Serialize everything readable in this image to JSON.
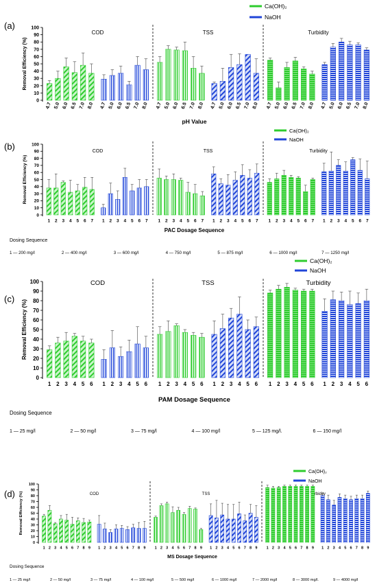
{
  "legend": {
    "series_a": "Ca(OH)₂",
    "series_b": "NaOH"
  },
  "colors": {
    "green": "#2ecc2e",
    "blue": "#2045d8",
    "axis": "#000000"
  },
  "chart_data": [
    {
      "panel_label": "(a)",
      "type": "bar",
      "ylabel": "Removal Efficiency (%)",
      "xlabel": "pH Value",
      "ylim": [
        0,
        100
      ],
      "yticks": [
        0,
        10,
        20,
        30,
        40,
        50,
        60,
        70,
        80,
        90,
        100
      ],
      "categories": [
        "4.7",
        "5.0",
        "6.0",
        "6.5",
        "7.0",
        "8.0"
      ],
      "sections": [
        {
          "name": "COD",
          "series": [
            {
              "name": "Ca(OH)₂",
              "values": [
                23,
                30,
                46,
                38,
                48,
                37
              ],
              "errors": [
                4,
                10,
                12,
                15,
                17,
                13
              ]
            },
            {
              "name": "NaOH",
              "values": [
                29,
                34,
                37,
                21,
                48,
                42
              ],
              "errors": [
                6,
                8,
                10,
                5,
                12,
                15
              ]
            }
          ]
        },
        {
          "name": "TSS",
          "series": [
            {
              "name": "Ca(OH)₂",
              "values": [
                52,
                70,
                69,
                68,
                44,
                37
              ],
              "errors": [
                8,
                5,
                4,
                12,
                16,
                10
              ]
            },
            {
              "name": "NaOH",
              "values": [
                23,
                26,
                45,
                49,
                63,
                37
              ],
              "errors": [
                2,
                18,
                18,
                15,
                0,
                20
              ]
            }
          ]
        },
        {
          "name": "Turbidity",
          "series": [
            {
              "name": "Ca(OH)₂",
              "values": [
                55,
                17,
                45,
                54,
                43,
                36
              ],
              "errors": [
                3,
                8,
                7,
                5,
                3,
                4
              ]
            },
            {
              "name": "NaOH",
              "values": [
                49,
                73,
                80,
                76,
                76,
                69
              ],
              "errors": [
                3,
                5,
                5,
                5,
                3,
                3
              ]
            }
          ]
        }
      ],
      "dosing": null
    },
    {
      "panel_label": "(b)",
      "type": "bar",
      "ylabel": "Removal Efficiency (%)",
      "xlabel": "PAC Dosage Sequence",
      "ylim": [
        0,
        100
      ],
      "yticks": [
        0,
        10,
        20,
        30,
        40,
        50,
        60,
        70,
        80,
        90,
        100
      ],
      "categories": [
        "1",
        "2",
        "3",
        "4",
        "5",
        "6",
        "7"
      ],
      "sections": [
        {
          "name": "COD",
          "series": [
            {
              "name": "Ca(OH)₂",
              "values": [
                38,
                38,
                46,
                32,
                34,
                39,
                36
              ],
              "errors": [
                12,
                20,
                2,
                17,
                9,
                14,
                17
              ]
            },
            {
              "name": "NaOH",
              "values": [
                10,
                30,
                22,
                53,
                34,
                38,
                40
              ],
              "errors": [
                5,
                15,
                12,
                13,
                9,
                12,
                10
              ]
            }
          ]
        },
        {
          "name": "TSS",
          "series": [
            {
              "name": "Ca(OH)₂",
              "values": [
                52,
                50,
                50,
                49,
                32,
                30,
                27
              ],
              "errors": [
                13,
                5,
                8,
                3,
                14,
                13,
                6
              ]
            },
            {
              "name": "NaOH",
              "values": [
                58,
                44,
                42,
                49,
                56,
                52,
                59
              ],
              "errors": [
                10,
                7,
                15,
                12,
                15,
                12,
                13
              ]
            }
          ]
        },
        {
          "name": "Turbidity",
          "series": [
            {
              "name": "Ca(OH)₂",
              "values": [
                46,
                51,
                56,
                53,
                52,
                33,
                50
              ],
              "errors": [
                5,
                8,
                7,
                3,
                2,
                9,
                2
              ]
            },
            {
              "name": "NaOH",
              "values": [
                61,
                62,
                70,
                62,
                78,
                63,
                51
              ],
              "errors": [
                12,
                27,
                8,
                13,
                3,
                16,
                25
              ]
            }
          ]
        }
      ],
      "dosing": {
        "title": "Dosing Sequence",
        "items": [
          "1 — 200 mg/l",
          "2 — 400 mg/l",
          "3 — 600 mg/l",
          "4 — 750 mg/l",
          "5 — 875 mg/l",
          "6 — 1000 mg/l",
          "7 — 1250 mg/l"
        ]
      }
    },
    {
      "panel_label": "(c)",
      "type": "bar",
      "ylabel": "Removal Efficiency (%)",
      "xlabel": "PAM Dosage Sequence",
      "ylim": [
        0,
        100
      ],
      "yticks": [
        0,
        10,
        20,
        30,
        40,
        50,
        60,
        70,
        80,
        90,
        100
      ],
      "categories": [
        "1",
        "2",
        "3",
        "4",
        "5",
        "6"
      ],
      "sections": [
        {
          "name": "COD",
          "series": [
            {
              "name": "Ca(OH)₂",
              "values": [
                29,
                36,
                38,
                43,
                38,
                36
              ],
              "errors": [
                4,
                6,
                9,
                3,
                5,
                4
              ]
            },
            {
              "name": "NaOH",
              "values": [
                19,
                31,
                22,
                27,
                35,
                31
              ],
              "errors": [
                10,
                18,
                10,
                12,
                18,
                12
              ]
            }
          ]
        },
        {
          "name": "TSS",
          "series": [
            {
              "name": "Ca(OH)₂",
              "values": [
                45,
                48,
                54,
                47,
                44,
                42
              ],
              "errors": [
                8,
                11,
                2,
                3,
                3,
                4
              ]
            },
            {
              "name": "NaOH",
              "values": [
                45,
                51,
                62,
                66,
                50,
                53
              ],
              "errors": [
                14,
                15,
                10,
                18,
                10,
                10
              ]
            }
          ]
        },
        {
          "name": "Turbidity",
          "series": [
            {
              "name": "Ca(OH)₂",
              "values": [
                88,
                92,
                94,
                91,
                90,
                90
              ],
              "errors": [
                3,
                4,
                4,
                2,
                2,
                2
              ]
            },
            {
              "name": "NaOH",
              "values": [
                69,
                81,
                80,
                76,
                77,
                80
              ],
              "errors": [
                13,
                9,
                9,
                14,
                11,
                12
              ]
            }
          ]
        }
      ],
      "dosing": {
        "title": "Dosing Sequence",
        "items": [
          "1 — 25 mg/l",
          "2 — 50 mg/l",
          "3 — 75 mg/l",
          "4 — 100 mg/l",
          "5 — 125 mg/l.",
          "6 — 150 mg/l"
        ]
      }
    },
    {
      "panel_label": "(d)",
      "type": "bar",
      "ylabel": "Removal Efficiency (%)",
      "xlabel": "MS Dosage Sequence",
      "ylim": [
        0,
        100
      ],
      "yticks": [
        0,
        10,
        20,
        30,
        40,
        50,
        60,
        70,
        80,
        90,
        100
      ],
      "categories": [
        "1",
        "2",
        "3",
        "4",
        "5",
        "6",
        "7",
        "8",
        "9"
      ],
      "sections": [
        {
          "name": "COD",
          "series": [
            {
              "name": "Ca(OH)₂",
              "values": [
                45,
                55,
                32,
                40,
                38,
                31,
                37,
                34,
                35
              ],
              "errors": [
                3,
                8,
                2,
                6,
                10,
                12,
                5,
                7,
                3
              ]
            },
            {
              "name": "NaOH",
              "values": [
                31,
                23,
                17,
                23,
                24,
                22,
                25,
                24,
                24
              ],
              "errors": [
                15,
                10,
                5,
                7,
                5,
                5,
                6,
                10,
                12
              ]
            }
          ]
        },
        {
          "name": "TSS",
          "series": [
            {
              "name": "Ca(OH)₂",
              "values": [
                43,
                63,
                66,
                51,
                55,
                48,
                58,
                57,
                22
              ],
              "errors": [
                2,
                3,
                3,
                10,
                5,
                3,
                4,
                2,
                2
              ]
            },
            {
              "name": "NaOH",
              "values": [
                46,
                42,
                47,
                40,
                40,
                49,
                37,
                50,
                43
              ],
              "errors": [
                20,
                30,
                20,
                25,
                25,
                20,
                10,
                15,
                20
              ]
            }
          ]
        },
        {
          "name": "Turbidity",
          "series": [
            {
              "name": "Ca(OH)₂",
              "values": [
                94,
                93,
                94,
                96,
                96,
                96,
                96,
                96,
                96
              ],
              "errors": [
                4,
                3,
                2,
                2,
                2,
                2,
                2,
                2,
                2
              ]
            },
            {
              "name": "NaOH",
              "values": [
                80,
                73,
                64,
                77,
                75,
                73,
                75,
                75,
                84
              ],
              "errors": [
                4,
                8,
                8,
                6,
                6,
                6,
                6,
                6,
                4
              ]
            }
          ]
        }
      ],
      "dosing": {
        "title": "Dosing Sequence",
        "items": [
          "1 — 25 mg/l",
          "2 — 50 mg/l",
          "3 — 75 mg/l",
          "4 — 100 mg/l",
          "5 — 500 mg/l",
          "6 — 1000 mg/l",
          "7 — 2000 mg/l",
          "8 — 3000 mg/l.",
          "9 — 4000 mg/l"
        ]
      }
    }
  ]
}
